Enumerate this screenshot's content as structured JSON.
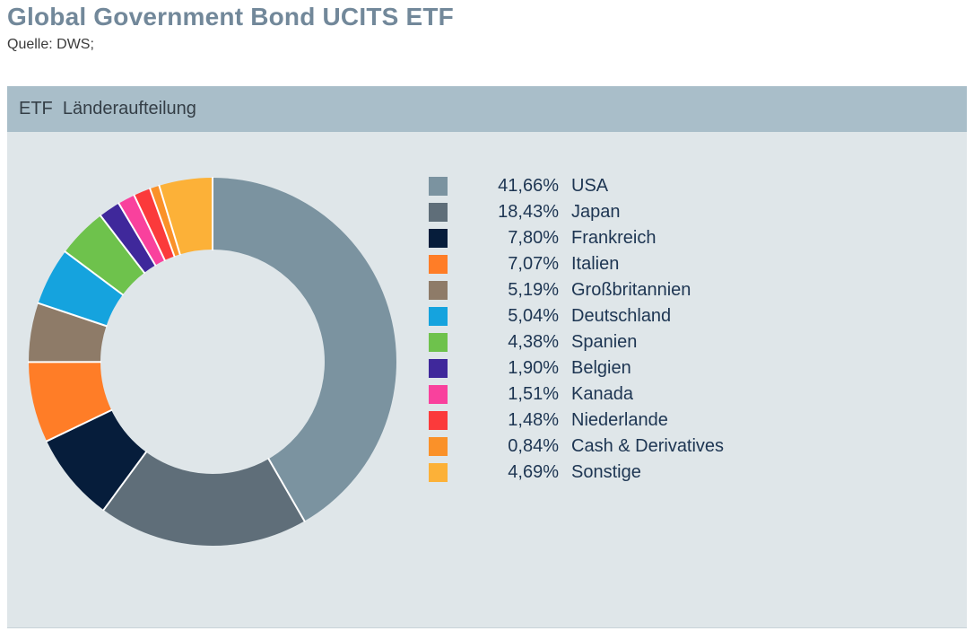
{
  "page": {
    "title": "Global Government Bond UCITS ETF",
    "source": "Quelle: DWS;"
  },
  "panel": {
    "header": "ETF  Länderaufteilung"
  },
  "theme": {
    "title_color": "#72889A",
    "source_color": "#3A3A3A",
    "header_bg": "#A9BEC9",
    "header_text_color": "#343E46",
    "body_bg": "#DFE6E9",
    "legend_text_color": "#1D3552",
    "slice_gap_color": "#FFFFFF"
  },
  "chart_data": {
    "type": "pie",
    "subtype": "donut",
    "title": "ETF Länderaufteilung",
    "start_angle": "top",
    "direction": "clockwise",
    "inner_radius_ratio": 0.61,
    "legend_position": "right",
    "categories": [
      "USA",
      "Japan",
      "Frankreich",
      "Italien",
      "Großbritannien",
      "Deutschland",
      "Spanien",
      "Belgien",
      "Kanada",
      "Niederlande",
      "Cash & Derivatives",
      "Sonstige"
    ],
    "values": [
      41.66,
      18.43,
      7.8,
      7.07,
      5.19,
      5.04,
      4.38,
      1.9,
      1.51,
      1.48,
      0.84,
      4.69
    ],
    "value_labels": [
      "41,66%",
      "18,43%",
      "7,80%",
      "7,07%",
      "5,19%",
      "5,04%",
      "4,38%",
      "1,90%",
      "1,51%",
      "1,48%",
      "0,84%",
      "4,69%"
    ],
    "colors": [
      "#7B93A0",
      "#5F6E79",
      "#061D3B",
      "#FF7D27",
      "#8E7B68",
      "#15A3DE",
      "#6EC24C",
      "#3F289B",
      "#F9419D",
      "#FB3A3B",
      "#FA9129",
      "#FCB138"
    ]
  }
}
